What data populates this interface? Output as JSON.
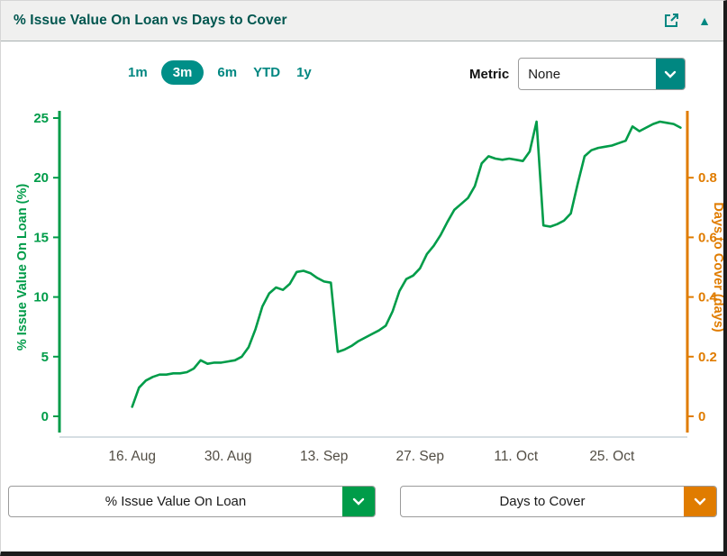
{
  "header": {
    "title": "% Issue Value On Loan vs Days to Cover"
  },
  "toolbar": {
    "ranges": [
      {
        "label": "1m",
        "selected": false
      },
      {
        "label": "3m",
        "selected": true
      },
      {
        "label": "6m",
        "selected": false
      },
      {
        "label": "YTD",
        "selected": false
      },
      {
        "label": "1y",
        "selected": false
      }
    ],
    "metric_label": "Metric",
    "metric_value": "None"
  },
  "footer": {
    "left_series_selector": "% Issue Value On Loan",
    "right_series_selector": "Days to Cover"
  },
  "colors": {
    "teal": "#008781",
    "green": "#009c49",
    "orange": "#e07c00",
    "header_bg": "#f0f0ef",
    "frame": "#1b1b1b",
    "date_label": "#534e45",
    "x_axis_line": "#c9d4da"
  },
  "chart_data": {
    "type": "line",
    "title": "",
    "grid": false,
    "legend": "none",
    "left_axis": {
      "label": "% Issue Value On Loan (%)",
      "color": "#009c49",
      "ticks": [
        0,
        5,
        10,
        15,
        20,
        25
      ],
      "range": [
        0,
        25
      ]
    },
    "right_axis": {
      "label": "Days to Cover (days)",
      "color": "#e07c00",
      "ticks": [
        0,
        0.2,
        0.4,
        0.6,
        0.8
      ],
      "range": [
        0,
        1
      ]
    },
    "x_axis": {
      "tick_labels": [
        "16. Aug",
        "30. Aug",
        "13. Sep",
        "27. Sep",
        "11. Oct",
        "25. Oct"
      ],
      "tick_days": [
        0,
        14,
        28,
        42,
        56,
        70
      ],
      "day_range": [
        -10.6,
        81
      ],
      "note_day0": "16. Aug"
    },
    "series": [
      {
        "name": "% Issue Value On Loan",
        "axis": "left",
        "color": "#009c49",
        "points": [
          [
            0,
            0.8
          ],
          [
            1,
            2.4
          ],
          [
            2,
            3.0
          ],
          [
            3,
            3.3
          ],
          [
            4,
            3.5
          ],
          [
            5,
            3.5
          ],
          [
            6,
            3.6
          ],
          [
            7,
            3.6
          ],
          [
            8,
            3.7
          ],
          [
            9,
            4.0
          ],
          [
            10,
            4.7
          ],
          [
            11,
            4.4
          ],
          [
            12,
            4.5
          ],
          [
            13,
            4.5
          ],
          [
            14,
            4.6
          ],
          [
            15,
            4.7
          ],
          [
            16,
            5.0
          ],
          [
            17,
            5.8
          ],
          [
            18,
            7.3
          ],
          [
            19,
            9.2
          ],
          [
            20,
            10.3
          ],
          [
            21,
            10.8
          ],
          [
            22,
            10.6
          ],
          [
            23,
            11.1
          ],
          [
            24,
            12.1
          ],
          [
            25,
            12.2
          ],
          [
            26,
            12.0
          ],
          [
            27,
            11.6
          ],
          [
            28,
            11.3
          ],
          [
            29,
            11.2
          ],
          [
            30,
            5.4
          ],
          [
            31,
            5.6
          ],
          [
            32,
            5.9
          ],
          [
            33,
            6.3
          ],
          [
            34,
            6.6
          ],
          [
            35,
            6.9
          ],
          [
            36,
            7.2
          ],
          [
            37,
            7.6
          ],
          [
            38,
            8.8
          ],
          [
            39,
            10.5
          ],
          [
            40,
            11.5
          ],
          [
            41,
            11.8
          ],
          [
            42,
            12.4
          ],
          [
            43,
            13.6
          ],
          [
            44,
            14.3
          ],
          [
            45,
            15.2
          ],
          [
            46,
            16.3
          ],
          [
            47,
            17.3
          ],
          [
            48,
            17.8
          ],
          [
            49,
            18.3
          ],
          [
            50,
            19.3
          ],
          [
            51,
            21.2
          ],
          [
            52,
            21.8
          ],
          [
            53,
            21.6
          ],
          [
            54,
            21.5
          ],
          [
            55,
            21.6
          ],
          [
            56,
            21.5
          ],
          [
            57,
            21.4
          ],
          [
            58,
            22.2
          ],
          [
            59,
            24.7
          ],
          [
            60,
            16.0
          ],
          [
            61,
            15.9
          ],
          [
            62,
            16.1
          ],
          [
            63,
            16.4
          ],
          [
            64,
            17.0
          ],
          [
            65,
            19.5
          ],
          [
            66,
            21.8
          ],
          [
            67,
            22.3
          ],
          [
            68,
            22.5
          ],
          [
            69,
            22.6
          ],
          [
            70,
            22.7
          ],
          [
            71,
            22.9
          ],
          [
            72,
            23.1
          ],
          [
            73,
            24.3
          ],
          [
            74,
            23.9
          ],
          [
            75,
            24.2
          ],
          [
            76,
            24.5
          ],
          [
            77,
            24.7
          ],
          [
            78,
            24.6
          ],
          [
            79,
            24.5
          ],
          [
            80,
            24.2
          ]
        ]
      }
    ]
  }
}
